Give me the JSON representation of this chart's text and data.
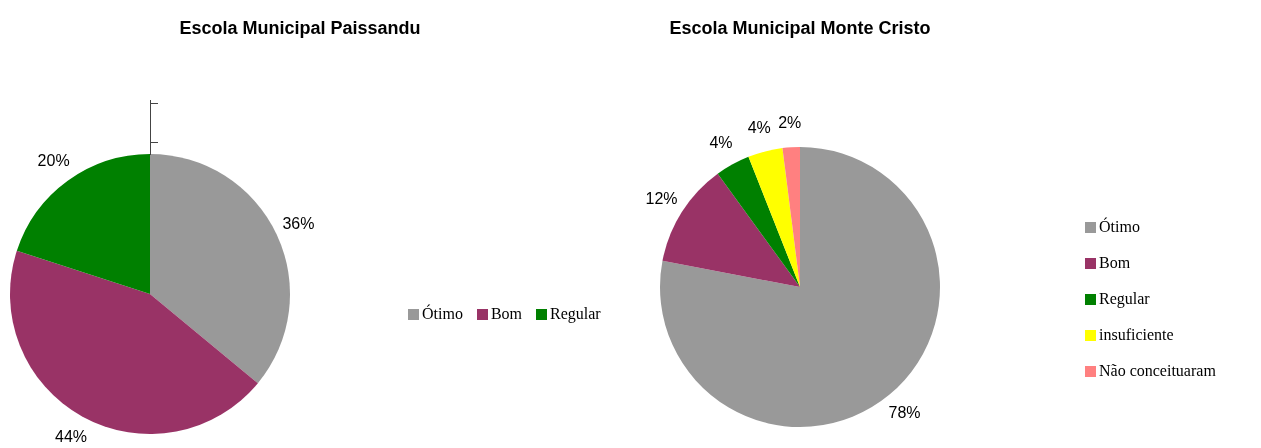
{
  "chart_data": [
    {
      "type": "pie",
      "title": "Escola Municipal Paissandu",
      "categories": [
        "Ótimo",
        "Bom",
        "Regular"
      ],
      "values": [
        36,
        44,
        20
      ],
      "colors": [
        "#999999",
        "#993366",
        "#008000"
      ],
      "value_labels": [
        "36%",
        "44%",
        "20%"
      ],
      "legend": "right"
    },
    {
      "type": "pie",
      "title": "Escola Municipal Monte Cristo",
      "categories": [
        "Ótimo",
        "Bom",
        "Regular",
        "insuficiente",
        "Não conceituaram"
      ],
      "values": [
        78,
        12,
        4,
        4,
        2
      ],
      "colors": [
        "#999999",
        "#993366",
        "#008000",
        "#ffff00",
        "#ff8080"
      ],
      "value_labels": [
        "78%",
        "12%",
        "4%",
        "4%",
        "2%"
      ],
      "legend": "right"
    }
  ]
}
